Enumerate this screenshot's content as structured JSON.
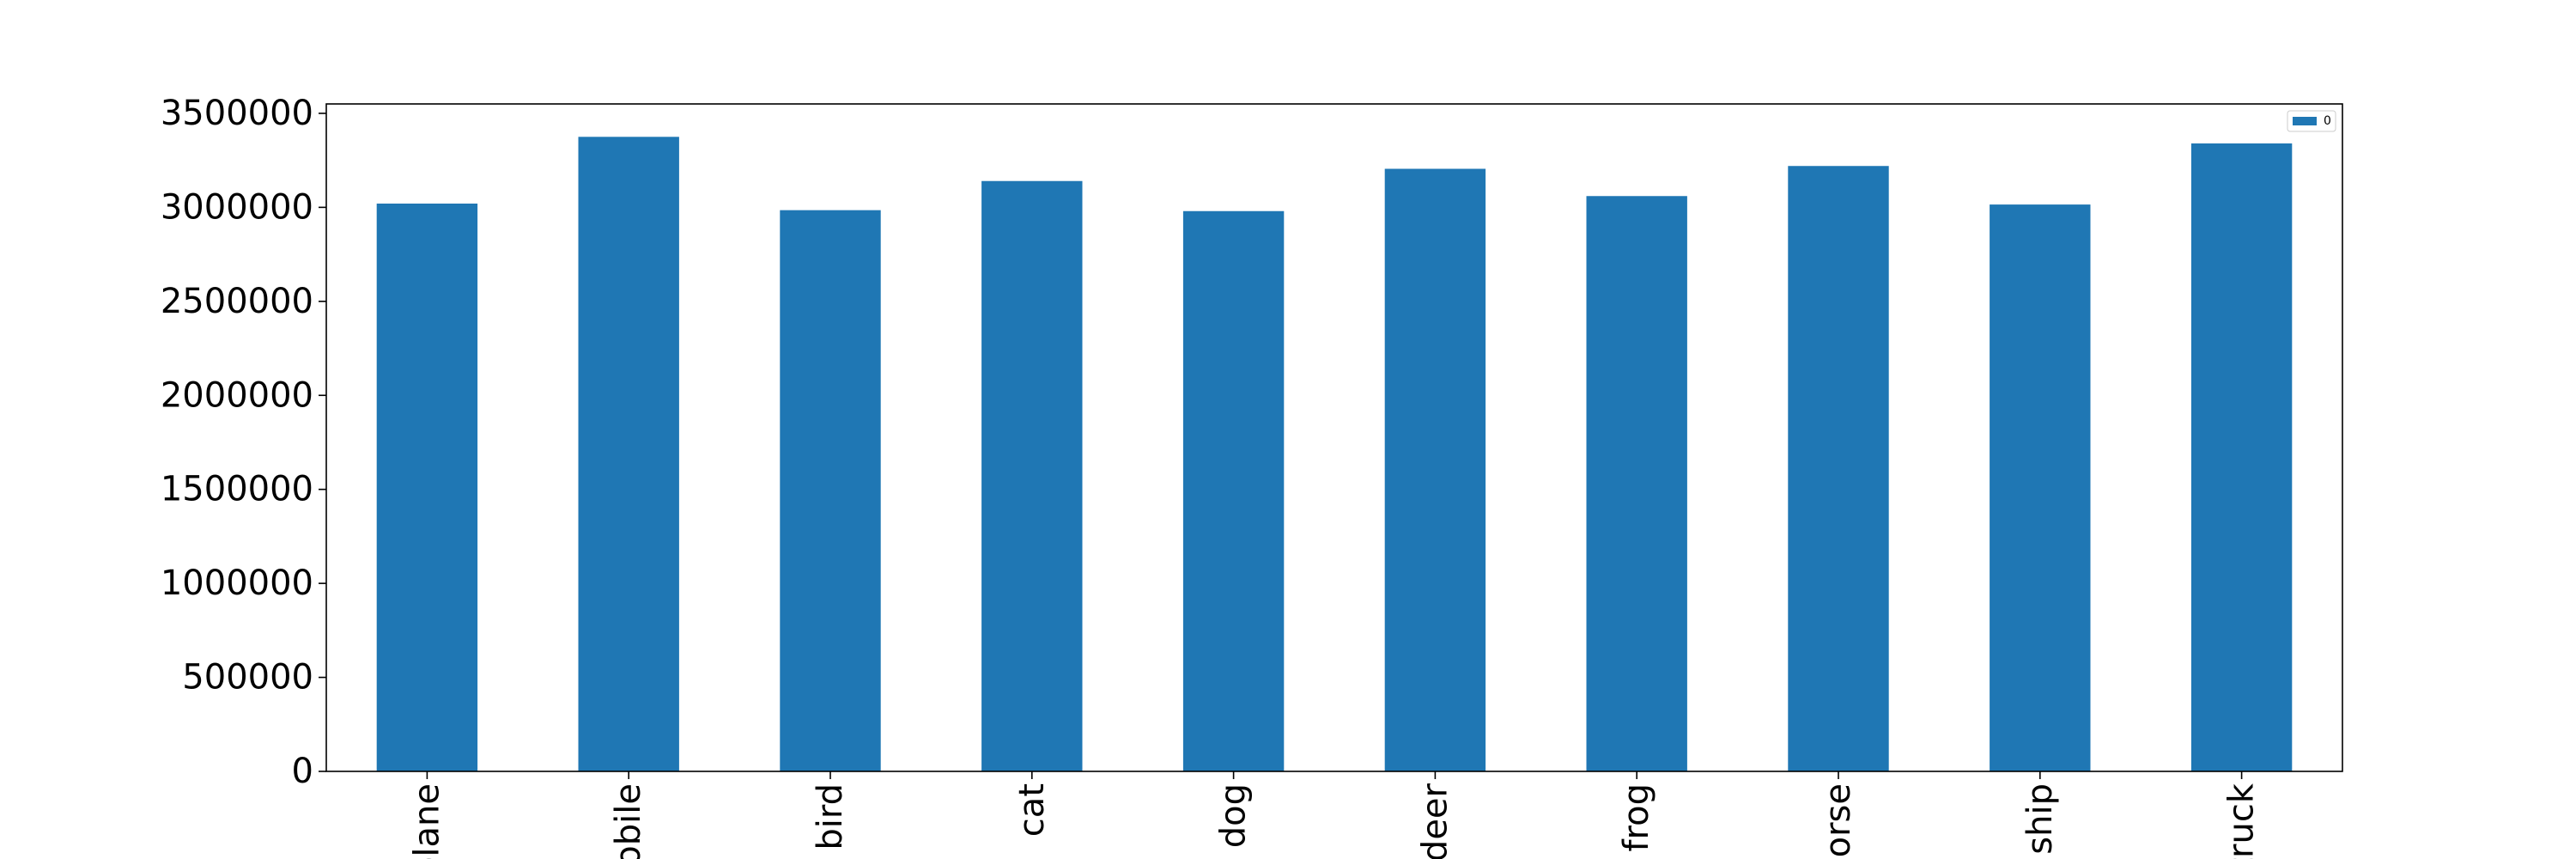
{
  "chart_data": {
    "type": "bar",
    "title": "",
    "xlabel": "",
    "ylabel": "",
    "categories": [
      "plane",
      "mobile",
      "bird",
      "cat",
      "dog",
      "deer",
      "frog",
      "horse",
      "ship",
      "truck"
    ],
    "series": [
      {
        "name": "0",
        "color": "#1f77b4",
        "values": [
          3020000,
          3375000,
          2985000,
          3140000,
          2980000,
          3205000,
          3060000,
          3220000,
          3015000,
          3340000
        ]
      }
    ],
    "ylim": [
      0,
      3550000
    ],
    "yticks": [
      0,
      500000,
      1000000,
      1500000,
      2000000,
      2500000,
      3000000,
      3500000
    ],
    "ytick_labels": [
      "0",
      "500000",
      "1000000",
      "1500000",
      "2000000",
      "2500000",
      "3000000",
      "3500000"
    ],
    "grid": false,
    "legend": {
      "position": "top-right",
      "entries": [
        "0"
      ]
    },
    "axis_color": "#000000"
  }
}
